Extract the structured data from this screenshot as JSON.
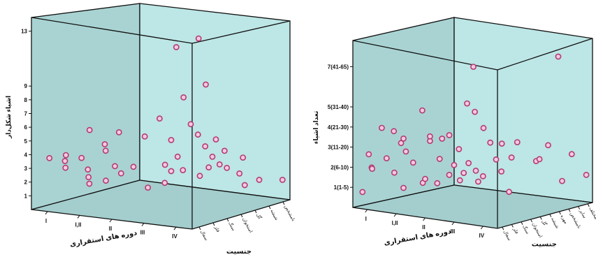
{
  "chart_data": [
    {
      "type": "scatter",
      "z_label": "اشیاء شکل‌دار",
      "x_label": "دوره های استقراری",
      "y_label": "جنسیت",
      "z_ticks": [
        "1",
        "2",
        "3",
        "4",
        "5",
        "6",
        "7",
        "8",
        "9",
        "13"
      ],
      "x_categories": [
        "I",
        "I,II",
        "II",
        "III",
        "IV"
      ],
      "y_categories": [
        "سفال",
        "فلز",
        "سنگ",
        "استخوان",
        "گل",
        "شیشه",
        "نامشخص"
      ],
      "points": [
        {
          "x": 0.4,
          "y": 0,
          "z": 3.7
        },
        {
          "x": 0.8,
          "y": 0.4,
          "z": 3.9
        },
        {
          "x": 0.55,
          "y": 0.8,
          "z": 3.3
        },
        {
          "x": 0.3,
          "y": 1.3,
          "z": 2.6
        },
        {
          "x": 0.6,
          "y": 2.4,
          "z": 1.2
        },
        {
          "x": 1.6,
          "y": 0,
          "z": 4.0
        },
        {
          "x": 1.3,
          "y": 1,
          "z": 2.8
        },
        {
          "x": 1.0,
          "y": 1.6,
          "z": 2.0
        },
        {
          "x": 1.0,
          "y": 2.8,
          "z": 1.4
        },
        {
          "x": 1.9,
          "y": 0,
          "z": 6.1
        },
        {
          "x": 2.2,
          "y": 0.5,
          "z": 5.0
        },
        {
          "x": 1.8,
          "y": 1.3,
          "z": 4.2
        },
        {
          "x": 2.0,
          "y": 2,
          "z": 2.4
        },
        {
          "x": 2.2,
          "y": 1.2,
          "z": 3.2
        },
        {
          "x": 3.0,
          "y": 0,
          "z": 6.2
        },
        {
          "x": 3.0,
          "y": 1,
          "z": 3.4
        },
        {
          "x": 3.0,
          "y": 2,
          "z": 1.6
        },
        {
          "x": 3.1,
          "y": 3,
          "z": 3.0
        },
        {
          "x": 3.8,
          "y": 0.3,
          "z": 6.0
        },
        {
          "x": 3.9,
          "y": 1.5,
          "z": 2.3
        },
        {
          "x": 3.6,
          "y": 2.5,
          "z": 2.8
        },
        {
          "x": 3.3,
          "y": 3.5,
          "z": 3.5
        },
        {
          "x": 4.3,
          "y": 0.4,
          "z": 7.4
        },
        {
          "x": 4.3,
          "y": 1.2,
          "z": 5.6
        },
        {
          "x": 4.2,
          "y": 2.2,
          "z": 3.1
        },
        {
          "x": 4.4,
          "y": 3.0,
          "z": 2.5
        },
        {
          "x": 4.6,
          "y": 1.0,
          "z": 12.5
        },
        {
          "x": 4.6,
          "y": 1.5,
          "z": 8.7
        },
        {
          "x": 4.6,
          "y": 2,
          "z": 6.6
        },
        {
          "x": 4.6,
          "y": 2.5,
          "z": 5.7
        },
        {
          "x": 4.6,
          "y": 3,
          "z": 4.7
        },
        {
          "x": 4.6,
          "y": 3.5,
          "z": 3.8
        },
        {
          "x": 4.6,
          "y": 4,
          "z": 3.1
        },
        {
          "x": 4.6,
          "y": 4.5,
          "z": 2.7
        },
        {
          "x": 4.8,
          "y": 5,
          "z": 2.2
        },
        {
          "x": 5.0,
          "y": 1.8,
          "z": 13.0
        },
        {
          "x": 5.0,
          "y": 2.3,
          "z": 9.5
        },
        {
          "x": 5.0,
          "y": 3,
          "z": 5.3
        },
        {
          "x": 5.0,
          "y": 3.6,
          "z": 4.3
        },
        {
          "x": 5.0,
          "y": 5,
          "z": 1.4
        },
        {
          "x": 5.0,
          "y": 6,
          "z": 1.5
        },
        {
          "x": 5.2,
          "y": 4.5,
          "z": 3.6
        },
        {
          "x": 5.6,
          "y": 6.5,
          "z": 1.5
        },
        {
          "x": 5.0,
          "y": 2.5,
          "z": 3.4
        }
      ]
    },
    {
      "type": "scatter",
      "z_label": "تعداد اشیاء",
      "x_label": "دوره های استقراری",
      "y_label": "جنسیت",
      "z_ticks": [
        "1(1-5)",
        "2(6-10)",
        "3(11-20)",
        "4(21-30)",
        "5(31-40)",
        "7(41-65)"
      ],
      "x_categories": [
        "I",
        "I,II",
        "II",
        "III",
        "IV"
      ],
      "y_categories": [
        "سفال",
        "فلز",
        "سنگ",
        "استخوان",
        "گل",
        "شیشه",
        "مهره",
        "نامشخص",
        "سایر",
        "مختلف"
      ],
      "points": [
        {
          "x": 0.2,
          "y": 0,
          "z": 0.75
        },
        {
          "x": 0.5,
          "y": 0.2,
          "z": 2.0
        },
        {
          "x": 0.3,
          "y": 0.4,
          "z": 2.6
        },
        {
          "x": 0.2,
          "y": 1,
          "z": 1.8
        },
        {
          "x": 0.6,
          "y": 1,
          "z": 3.9
        },
        {
          "x": 1.2,
          "y": 0,
          "z": 2.6
        },
        {
          "x": 1.2,
          "y": 0.8,
          "z": 1.8
        },
        {
          "x": 1.2,
          "y": 1.5,
          "z": 3.2
        },
        {
          "x": 1.1,
          "y": 2,
          "z": 0.9
        },
        {
          "x": 1.5,
          "y": 0,
          "z": 4.0
        },
        {
          "x": 1.6,
          "y": 1,
          "z": 2.9
        },
        {
          "x": 1.7,
          "y": 2.5,
          "z": 1.2
        },
        {
          "x": 1.9,
          "y": 0,
          "z": 3.7
        },
        {
          "x": 1.9,
          "y": 1,
          "z": 2.4
        },
        {
          "x": 2.0,
          "y": 2,
          "z": 1.5
        },
        {
          "x": 2.1,
          "y": 3,
          "z": 1.2
        },
        {
          "x": 2.6,
          "y": 0.2,
          "z": 5.2
        },
        {
          "x": 2.6,
          "y": 1,
          "z": 3.6
        },
        {
          "x": 2.6,
          "y": 2,
          "z": 2.6
        },
        {
          "x": 2.6,
          "y": 3,
          "z": 1.7
        },
        {
          "x": 2.8,
          "y": 3.6,
          "z": 1.4
        },
        {
          "x": 3.0,
          "y": 0,
          "z": 4.0
        },
        {
          "x": 3.1,
          "y": 1,
          "z": 3.8
        },
        {
          "x": 3.2,
          "y": 2,
          "z": 2.4
        },
        {
          "x": 3.2,
          "y": 3,
          "z": 1.9
        },
        {
          "x": 3.4,
          "y": 4,
          "z": 1.4
        },
        {
          "x": 3.8,
          "y": 0,
          "z": 4.2
        },
        {
          "x": 3.8,
          "y": 1,
          "z": 3.4
        },
        {
          "x": 3.8,
          "y": 2,
          "z": 2.6
        },
        {
          "x": 3.7,
          "y": 3,
          "z": 2.1
        },
        {
          "x": 3.6,
          "y": 4,
          "z": 1.7
        },
        {
          "x": 4.3,
          "y": 1.4,
          "z": 5.3
        },
        {
          "x": 4.3,
          "y": 2.3,
          "z": 4.4
        },
        {
          "x": 4.3,
          "y": 3,
          "z": 3.6
        },
        {
          "x": 4.3,
          "y": 3.6,
          "z": 2.7
        },
        {
          "x": 4.2,
          "y": 4.4,
          "z": 2.0
        },
        {
          "x": 4.2,
          "y": 5.2,
          "z": 0.9
        },
        {
          "x": 4.3,
          "y": 0.6,
          "z": 5.8
        },
        {
          "x": 4.4,
          "y": 1,
          "z": 7.6
        },
        {
          "x": 4.7,
          "y": 3.2,
          "z": 3.6
        },
        {
          "x": 4.7,
          "y": 4.2,
          "z": 2.8
        },
        {
          "x": 4.7,
          "y": 4.8,
          "z": 3.5
        },
        {
          "x": 4.8,
          "y": 6.5,
          "z": 2.4
        },
        {
          "x": 4.9,
          "y": 6.6,
          "z": 2.5
        },
        {
          "x": 4.9,
          "y": 7.5,
          "z": 3.1
        },
        {
          "x": 5.2,
          "y": 8.2,
          "z": 1.3
        },
        {
          "x": 5.6,
          "y": 6.8,
          "z": 7.7
        },
        {
          "x": 5.6,
          "y": 8.2,
          "z": 2.7
        },
        {
          "x": 5.8,
          "y": 9.2,
          "z": 1.6
        }
      ]
    }
  ]
}
